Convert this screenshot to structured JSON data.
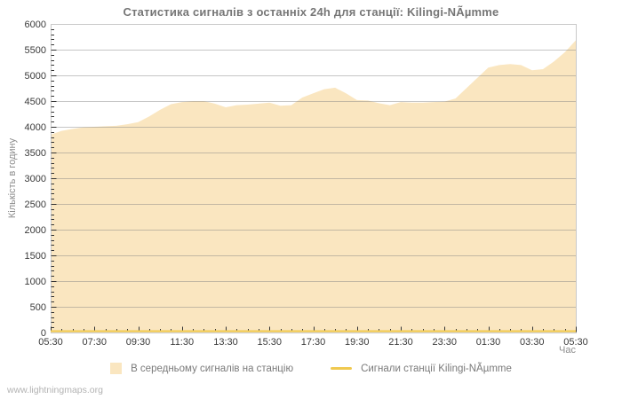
{
  "page": {
    "footer": "www.lightningmaps.org"
  },
  "colors": {
    "grid": "#808080",
    "plot_border": "#c9c9c9",
    "tick": "#333333",
    "axis_text": "#3a3a3a",
    "area_fill": "#f8dca8",
    "station_line": "#f0c94f",
    "title_text": "#767676",
    "muted_text": "#8d8d8d",
    "footer_text": "#b3b3b3"
  },
  "chart_data": {
    "type": "area",
    "title": "Статистика сигналів з останніх 24h для станції: Kilingi-NÃµmme",
    "xlabel": "Час",
    "ylabel": "Кількість в годину",
    "ylim": [
      0,
      6000
    ],
    "y_major_step": 500,
    "y_minor_step": 100,
    "grid": true,
    "legend_position": "bottom",
    "x_tick_labels": [
      "05:30",
      "07:30",
      "09:30",
      "11:30",
      "13:30",
      "15:30",
      "17:30",
      "19:30",
      "21:30",
      "23:30",
      "01:30",
      "03:30",
      "05:30"
    ],
    "minor_ticks_per_major_x": 4,
    "x_minor_interval_minutes": 30,
    "series": [
      {
        "name": "В середньому сигналів на станцію",
        "type": "area",
        "color": "#f8dca8",
        "fill_opacity": 0.72,
        "values": [
          3850,
          3920,
          3960,
          3990,
          4000,
          4010,
          4020,
          4050,
          4090,
          4200,
          4330,
          4440,
          4480,
          4500,
          4500,
          4450,
          4380,
          4420,
          4430,
          4450,
          4470,
          4410,
          4420,
          4570,
          4650,
          4730,
          4760,
          4650,
          4520,
          4510,
          4460,
          4420,
          4480,
          4470,
          4470,
          4480,
          4490,
          4550,
          4750,
          4950,
          5150,
          5200,
          5220,
          5200,
          5100,
          5120,
          5270,
          5450,
          5680
        ]
      },
      {
        "name": "Сигнали станції Kilingi-NÃµmme",
        "type": "line",
        "color": "#f0c94f",
        "values": [
          0,
          0,
          0,
          0,
          0,
          0,
          0,
          0,
          0,
          0,
          0,
          0,
          0,
          0,
          0,
          0,
          0,
          0,
          0,
          0,
          0,
          0,
          0,
          0,
          0,
          0,
          0,
          0,
          0,
          0,
          0,
          0,
          0,
          0,
          0,
          0,
          0,
          0,
          0,
          0,
          0,
          0,
          0,
          0,
          0,
          0,
          0,
          0,
          0
        ]
      }
    ]
  }
}
